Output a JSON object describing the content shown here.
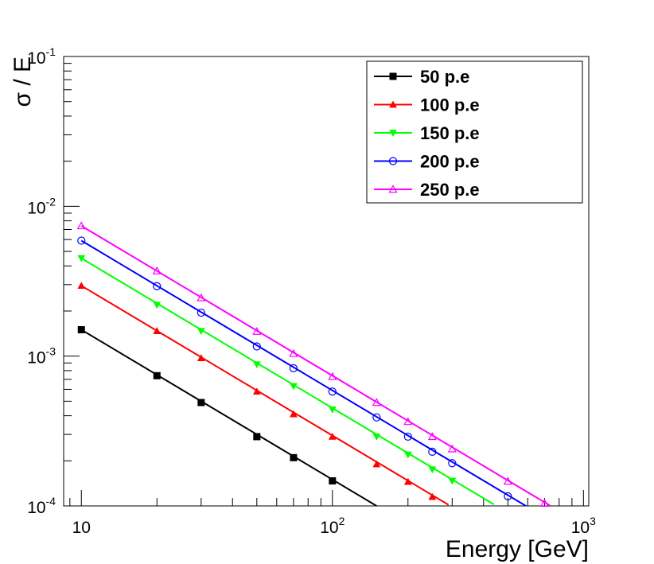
{
  "chart_data": {
    "type": "line",
    "title": "",
    "xlabel": "Energy [GeV]",
    "ylabel": "σ / E",
    "xscale": "log",
    "yscale": "log",
    "xlim": [
      8.5,
      1050
    ],
    "ylim": [
      0.0001,
      0.1
    ],
    "x_tick_labels": [
      {
        "value": 10,
        "base": "10",
        "exp": ""
      },
      {
        "value": 100,
        "base": "10",
        "exp": "2"
      },
      {
        "value": 1000,
        "base": "10",
        "exp": "3"
      }
    ],
    "y_tick_labels": [
      {
        "value": 0.1,
        "base": "10",
        "exp": "-1"
      },
      {
        "value": 0.01,
        "base": "10",
        "exp": "-2"
      },
      {
        "value": 0.001,
        "base": "10",
        "exp": "-3"
      },
      {
        "value": 0.0001,
        "base": "10",
        "exp": "-4"
      }
    ],
    "legend_position": "top-right",
    "series": [
      {
        "name": "50 p.e",
        "color": "#000000",
        "marker": "square-filled",
        "fit_x": [
          10,
          150
        ],
        "points": [
          [
            10,
            0.0015
          ],
          [
            20,
            0.00074
          ],
          [
            30,
            0.00049
          ],
          [
            50,
            0.00029
          ],
          [
            70,
            0.00021
          ],
          [
            100,
            0.000147
          ]
        ]
      },
      {
        "name": "100 p.e",
        "color": "#ff0000",
        "marker": "triangle-up-filled",
        "fit_x": [
          10,
          290
        ],
        "points": [
          [
            10,
            0.00295
          ],
          [
            20,
            0.00147
          ],
          [
            30,
            0.00097
          ],
          [
            50,
            0.00058
          ],
          [
            70,
            0.00041
          ],
          [
            100,
            0.00029
          ],
          [
            150,
            0.00019
          ],
          [
            200,
            0.000145
          ],
          [
            250,
            0.000115
          ]
        ]
      },
      {
        "name": "150 p.e",
        "color": "#00ff00",
        "marker": "triangle-down-filled",
        "fit_x": [
          10,
          440
        ],
        "points": [
          [
            10,
            0.0045
          ],
          [
            20,
            0.0022
          ],
          [
            30,
            0.00147
          ],
          [
            50,
            0.00088
          ],
          [
            70,
            0.00063
          ],
          [
            100,
            0.00044
          ],
          [
            150,
            0.00029
          ],
          [
            200,
            0.00022
          ],
          [
            250,
            0.000175
          ],
          [
            300,
            0.000147
          ]
        ]
      },
      {
        "name": "200 p.e",
        "color": "#0000ff",
        "marker": "circle-open",
        "fit_x": [
          10,
          600
        ],
        "points": [
          [
            10,
            0.0059
          ],
          [
            20,
            0.00293
          ],
          [
            30,
            0.00195
          ],
          [
            50,
            0.00116
          ],
          [
            70,
            0.00083
          ],
          [
            100,
            0.00058
          ],
          [
            150,
            0.00039
          ],
          [
            200,
            0.00029
          ],
          [
            250,
            0.00023
          ],
          [
            300,
            0.000193
          ],
          [
            500,
            0.000116
          ]
        ]
      },
      {
        "name": "250 p.e",
        "color": "#ff00ff",
        "marker": "triangle-up-open",
        "fit_x": [
          10,
          740
        ],
        "points": [
          [
            10,
            0.0074
          ],
          [
            20,
            0.0037
          ],
          [
            30,
            0.00245
          ],
          [
            50,
            0.00146
          ],
          [
            70,
            0.00104
          ],
          [
            100,
            0.00073
          ],
          [
            150,
            0.00049
          ],
          [
            200,
            0.000365
          ],
          [
            250,
            0.00029
          ],
          [
            300,
            0.00024
          ],
          [
            500,
            0.000146
          ],
          [
            700,
            0.000104
          ]
        ]
      }
    ]
  }
}
